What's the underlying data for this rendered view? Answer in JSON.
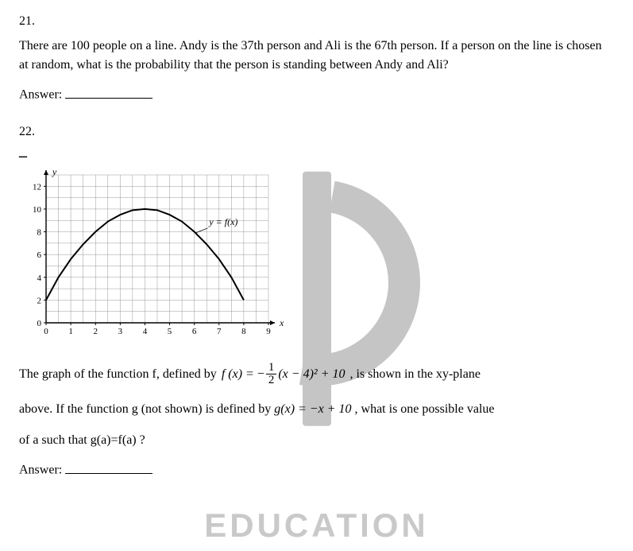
{
  "q21": {
    "number": "21.",
    "text": "There are 100 people on a line. Andy is the 37th person and Ali is the 67th person. If a person on the line is chosen at random, what is the probability that the person is standing between Andy and Ali?",
    "answer_label": "Answer:"
  },
  "q22": {
    "number": "22.",
    "dash": "–",
    "graph": {
      "x_axis_label": "x",
      "y_axis_label": "y",
      "curve_label": "y = f(x)",
      "x_ticks": [
        "0",
        "1",
        "2",
        "3",
        "4",
        "5",
        "6",
        "7",
        "8",
        "9"
      ],
      "y_ticks": [
        "0",
        "2",
        "4",
        "6",
        "8",
        "10",
        "12"
      ],
      "xlim": [
        0,
        9
      ],
      "ylim": [
        0,
        13
      ],
      "grid_color": "#808080",
      "axis_color": "#000000",
      "curve_color": "#000000",
      "curve_width": 2,
      "background_color": "#ffffff",
      "curve_points": [
        [
          0,
          2
        ],
        [
          0.5,
          4
        ],
        [
          1,
          5.6
        ],
        [
          1.5,
          6.9
        ],
        [
          2,
          8
        ],
        [
          2.5,
          8.9
        ],
        [
          3,
          9.5
        ],
        [
          3.5,
          9.9
        ],
        [
          4,
          10
        ],
        [
          4.5,
          9.9
        ],
        [
          5,
          9.5
        ],
        [
          5.5,
          8.9
        ],
        [
          6,
          8
        ],
        [
          6.5,
          6.9
        ],
        [
          7,
          5.6
        ],
        [
          7.5,
          4
        ],
        [
          8,
          2
        ]
      ]
    },
    "para1_pre": "The graph of the function f, defined by ",
    "formula_f": {
      "lhs": "f (x) = ",
      "neg": "−",
      "frac_num": "1",
      "frac_den": "2",
      "rhs": "(x − 4)² + 10"
    },
    "para1_post": " , is shown in the xy-plane",
    "para2_pre": "above. If the function g (not shown) is defined by ",
    "formula_g": "g(x) = −x + 10",
    "para2_post": " , what is one possible value",
    "para3": "of a such that g(a)=f(a) ?",
    "answer_label": "Answer:"
  },
  "watermark": {
    "logo_color": "#c0c0c0",
    "text": "EDUCATION"
  }
}
